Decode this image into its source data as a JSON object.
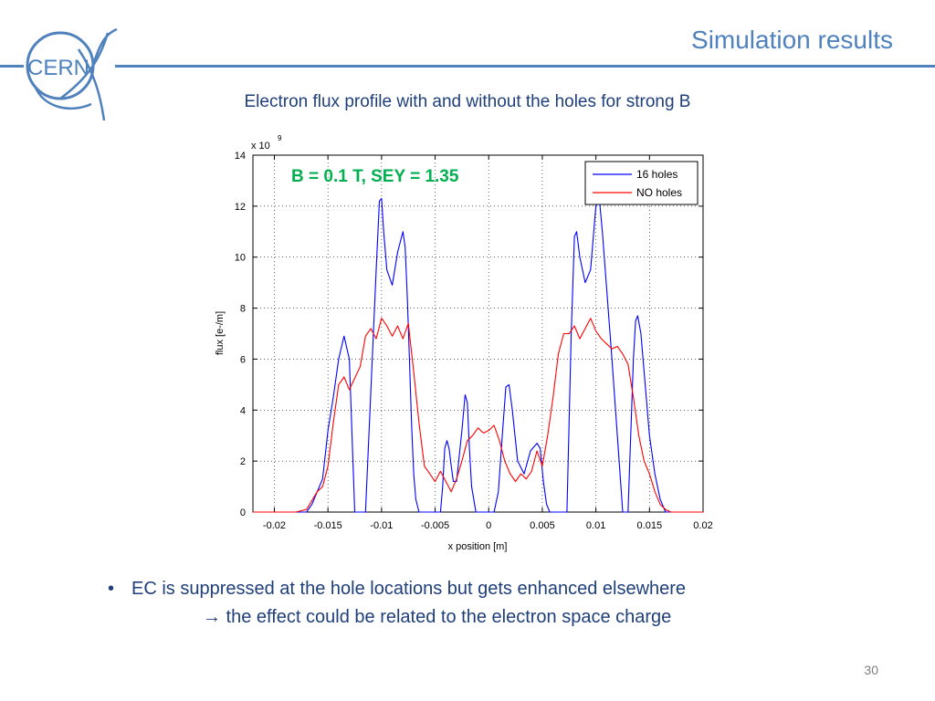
{
  "slide": {
    "title": "Simulation results",
    "logo_text": "CERN",
    "subtitle": "Electron flux profile with and without the holes for strong B",
    "bullet_marker": "•",
    "bullet": "EC is suppressed at the hole locations but gets enhanced elsewhere",
    "sub_bullet": "→ the effect could be related to the electron space charge",
    "page_number": "30",
    "colors": {
      "accent": "#4f81bd",
      "text": "#1f3f7a",
      "annotation": "#00b050"
    }
  },
  "chart_data": {
    "type": "line",
    "title": "",
    "xlabel": "x position [m]",
    "ylabel": "flux [e-/m]",
    "y_multiplier": "x 10",
    "y_multiplier_exp": "9",
    "annotation": "B = 0.1 T, SEY = 1.35",
    "xlim": [
      -0.022,
      0.02
    ],
    "ylim": [
      0,
      14
    ],
    "xticks": [
      -0.02,
      -0.015,
      -0.01,
      -0.005,
      0,
      0.005,
      0.01,
      0.015,
      0.02
    ],
    "xtick_labels": [
      "-0.02",
      "-0.015",
      "-0.01",
      "-0.005",
      "0",
      "0.005",
      "0.01",
      "0.015",
      "0.02"
    ],
    "yticks": [
      0,
      2,
      4,
      6,
      8,
      10,
      12,
      14
    ],
    "ytick_labels": [
      "0",
      "2",
      "4",
      "6",
      "8",
      "10",
      "12",
      "14"
    ],
    "grid": true,
    "legend_position": "top-right",
    "series": [
      {
        "name": "16 holes",
        "color": "#0000ff",
        "x": [
          -0.022,
          -0.017,
          -0.0165,
          -0.0155,
          -0.015,
          -0.0145,
          -0.014,
          -0.0135,
          -0.013,
          -0.0125,
          -0.0115,
          -0.0105,
          -0.0102,
          -0.01,
          -0.0098,
          -0.0095,
          -0.009,
          -0.0085,
          -0.008,
          -0.0078,
          -0.0076,
          -0.0074,
          -0.0072,
          -0.007,
          -0.0068,
          -0.0065,
          -0.0055,
          -0.0045,
          -0.0043,
          -0.0041,
          -0.0039,
          -0.0037,
          -0.0035,
          -0.0033,
          -0.003,
          -0.0025,
          -0.0022,
          -0.002,
          -0.0018,
          -0.0016,
          -0.0012,
          -0.0005,
          0.0005,
          0.0009,
          0.0013,
          0.0016,
          0.0019,
          0.0022,
          0.0027,
          0.0033,
          0.0039,
          0.0045,
          0.0048,
          0.0051,
          0.0054,
          0.0057,
          0.0063,
          0.0073,
          0.0077,
          0.008,
          0.0082,
          0.0085,
          0.009,
          0.0095,
          0.01,
          0.0103,
          0.0106,
          0.0115,
          0.0125,
          0.013,
          0.0135,
          0.0137,
          0.0139,
          0.0142,
          0.0146,
          0.015,
          0.0155,
          0.016,
          0.0165,
          0.0168,
          0.02
        ],
        "y": [
          0,
          0,
          0.3,
          1.3,
          3.2,
          4.5,
          6.0,
          6.9,
          6.0,
          0,
          0,
          9.5,
          12.2,
          12.3,
          11.0,
          9.5,
          8.9,
          10.2,
          11.0,
          10.4,
          8.5,
          6.0,
          3.5,
          1.5,
          0.5,
          0,
          0,
          0,
          1.0,
          2.5,
          2.8,
          2.5,
          1.8,
          1.2,
          1.2,
          3.2,
          4.6,
          4.3,
          2.5,
          1.0,
          0,
          0,
          0,
          0.8,
          3.2,
          4.9,
          5.0,
          4.0,
          2.0,
          1.5,
          2.4,
          2.7,
          2.5,
          1.2,
          0.3,
          0,
          0,
          0,
          7.0,
          10.8,
          11.0,
          10.0,
          9.0,
          9.5,
          12.0,
          12.4,
          11.0,
          6.0,
          0,
          0,
          6.0,
          7.5,
          7.7,
          7.0,
          5.0,
          3.0,
          1.5,
          0.5,
          0,
          0,
          0
        ]
      },
      {
        "name": "NO holes",
        "color": "#ff0000",
        "x": [
          -0.022,
          -0.018,
          -0.017,
          -0.016,
          -0.0155,
          -0.015,
          -0.0145,
          -0.014,
          -0.0135,
          -0.013,
          -0.012,
          -0.0115,
          -0.011,
          -0.0105,
          -0.01,
          -0.0095,
          -0.009,
          -0.0085,
          -0.008,
          -0.0075,
          -0.007,
          -0.0065,
          -0.006,
          -0.0055,
          -0.005,
          -0.0045,
          -0.004,
          -0.0035,
          -0.003,
          -0.0025,
          -0.002,
          -0.0015,
          -0.001,
          -0.0005,
          0.0,
          0.0005,
          0.001,
          0.0015,
          0.002,
          0.0025,
          0.003,
          0.0035,
          0.004,
          0.0045,
          0.005,
          0.0055,
          0.006,
          0.0065,
          0.007,
          0.0075,
          0.008,
          0.0085,
          0.009,
          0.0095,
          0.01,
          0.0105,
          0.011,
          0.0115,
          0.012,
          0.0125,
          0.013,
          0.0135,
          0.014,
          0.0145,
          0.015,
          0.0155,
          0.016,
          0.0165,
          0.017,
          0.02
        ],
        "y": [
          0,
          0,
          0.1,
          0.8,
          1.0,
          1.8,
          3.5,
          5.0,
          5.3,
          4.8,
          5.7,
          6.9,
          7.2,
          6.8,
          7.6,
          7.3,
          6.9,
          7.3,
          6.8,
          7.4,
          5.5,
          3.5,
          1.8,
          1.5,
          1.2,
          1.6,
          1.2,
          0.8,
          1.3,
          2.0,
          2.8,
          3.0,
          3.3,
          3.1,
          3.2,
          3.4,
          2.8,
          2.0,
          1.5,
          1.2,
          1.5,
          1.3,
          1.6,
          2.4,
          1.8,
          3.0,
          4.5,
          6.2,
          7.0,
          7.0,
          7.3,
          6.8,
          7.2,
          7.6,
          7.1,
          6.8,
          6.6,
          6.4,
          6.5,
          6.2,
          5.8,
          4.5,
          3.0,
          2.0,
          1.5,
          0.8,
          0.3,
          0.1,
          0,
          0
        ]
      }
    ]
  }
}
